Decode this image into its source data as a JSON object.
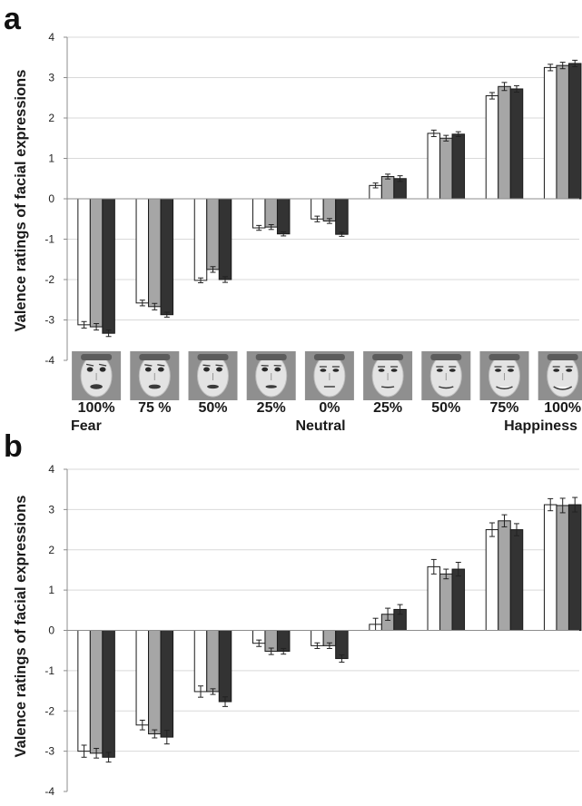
{
  "colors": {
    "s1": "#ffffff",
    "s2": "#a6a6a6",
    "s3": "#333333",
    "grid": "#d9d9d9",
    "axis": "#8c8c8c",
    "face_bg": "#8f8f8f"
  },
  "labels": {
    "panel_a": "a",
    "panel_b": "b",
    "row1": [
      "100%",
      "75 %",
      "50%",
      "25%",
      "0%",
      "25%",
      "50%",
      "75%",
      "100%"
    ],
    "row2": {
      "fear": "Fear",
      "neutral": "Neutral",
      "happiness": "Happiness"
    }
  },
  "faces": [
    {
      "icon": "face-fear-100-icon",
      "smile": -0.8
    },
    {
      "icon": "face-fear-75-icon",
      "smile": -0.6
    },
    {
      "icon": "face-fear-50-icon",
      "smile": -0.4
    },
    {
      "icon": "face-fear-25-icon",
      "smile": -0.2
    },
    {
      "icon": "face-neutral-icon",
      "smile": 0
    },
    {
      "icon": "face-happy-25-icon",
      "smile": 0.25
    },
    {
      "icon": "face-happy-50-icon",
      "smile": 0.5
    },
    {
      "icon": "face-happy-75-icon",
      "smile": 0.75
    },
    {
      "icon": "face-happy-100-icon",
      "smile": 1
    }
  ],
  "chart_data": [
    {
      "type": "bar",
      "panel": "a",
      "ylabel": "Valence ratings of facial expressions",
      "ylim": [
        -4,
        4
      ],
      "yticks": [
        4,
        3,
        2,
        1,
        0,
        -1,
        -2,
        -3,
        -4
      ],
      "grid": true,
      "categories": [
        "100% Fear",
        "75 %",
        "50%",
        "25%",
        "0% Neutral",
        "25%",
        "50%",
        "75%",
        "100% Happiness"
      ],
      "series": [
        {
          "values": [
            -3.12,
            -2.58,
            -2.02,
            -0.72,
            -0.5,
            0.33,
            1.62,
            2.55,
            3.25
          ],
          "errors": [
            0.08,
            0.07,
            0.06,
            0.06,
            0.07,
            0.06,
            0.08,
            0.08,
            0.08
          ]
        },
        {
          "values": [
            -3.17,
            -2.67,
            -1.75,
            -0.7,
            -0.55,
            0.55,
            1.5,
            2.78,
            3.3
          ],
          "errors": [
            0.08,
            0.08,
            0.07,
            0.06,
            0.06,
            0.06,
            0.07,
            0.1,
            0.08
          ]
        },
        {
          "values": [
            -3.33,
            -2.87,
            -2.0,
            -0.87,
            -0.88,
            0.5,
            1.6,
            2.72,
            3.35
          ],
          "errors": [
            0.08,
            0.06,
            0.07,
            0.05,
            0.05,
            0.07,
            0.06,
            0.08,
            0.08
          ]
        }
      ]
    },
    {
      "type": "bar",
      "panel": "b",
      "ylabel": "Valence ratings of facial expressions",
      "ylim": [
        -4,
        4
      ],
      "yticks": [
        4,
        3,
        2,
        1,
        0,
        -1,
        -2,
        -3,
        -4
      ],
      "grid": true,
      "categories": [
        "100% Fear",
        "75 %",
        "50%",
        "25%",
        "0% Neutral",
        "25%",
        "50%",
        "75%",
        "100% Happiness"
      ],
      "series": [
        {
          "values": [
            -3.0,
            -2.35,
            -1.52,
            -0.32,
            -0.38,
            0.15,
            1.58,
            2.5,
            3.12
          ],
          "errors": [
            0.15,
            0.12,
            0.14,
            0.08,
            0.07,
            0.15,
            0.18,
            0.17,
            0.15
          ]
        },
        {
          "values": [
            -3.05,
            -2.57,
            -1.52,
            -0.52,
            -0.38,
            0.4,
            1.4,
            2.72,
            3.1
          ],
          "errors": [
            0.12,
            0.1,
            0.07,
            0.08,
            0.07,
            0.15,
            0.12,
            0.15,
            0.18
          ]
        },
        {
          "values": [
            -3.15,
            -2.65,
            -1.77,
            -0.52,
            -0.7,
            0.52,
            1.52,
            2.5,
            3.12
          ],
          "errors": [
            0.12,
            0.17,
            0.12,
            0.07,
            0.09,
            0.12,
            0.17,
            0.15,
            0.18
          ]
        }
      ]
    }
  ]
}
